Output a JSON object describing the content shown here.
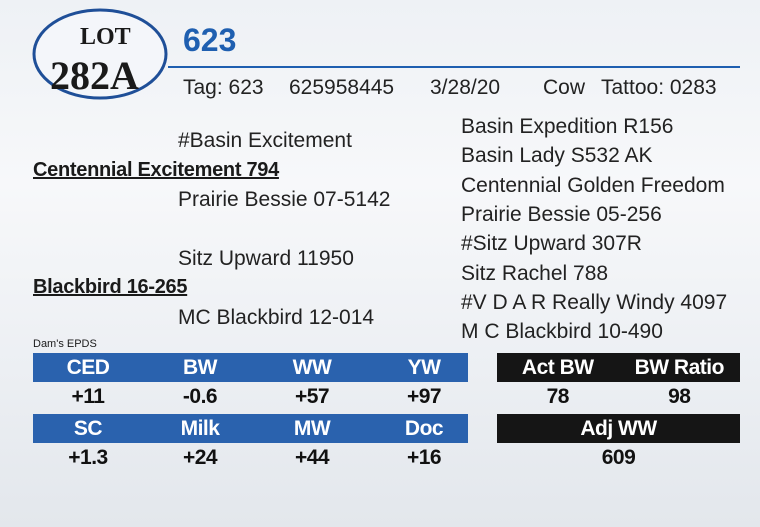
{
  "lot": {
    "label": "LOT",
    "number": "282A"
  },
  "header": {
    "name": "623",
    "tag": "Tag: 623",
    "registration": "625958445",
    "birth_date": "3/28/20",
    "sex": "Cow",
    "tattoo": "Tattoo: 0283"
  },
  "pedigree": {
    "sire": "Centennial Excitement 794",
    "sire_sire": "#Basin Excitement",
    "sire_dam": "Prairie Bessie 07-5142",
    "dam": "Blackbird 16-265",
    "dam_sire": "Sitz Upward 11950",
    "dam_dam": "MC Blackbird 12-014",
    "great_grandparents": [
      "Basin Expedition R156",
      "Basin Lady S532 AK",
      "Centennial Golden Freedom",
      "Prairie Bessie 05-256",
      "#Sitz Upward 307R",
      "Sitz Rachel 788",
      "#V D A R Really Windy 4097",
      "M C Blackbird 10-490"
    ]
  },
  "epds": {
    "title": "Dam's EPDS",
    "rows": [
      {
        "headers": [
          "CED",
          "BW",
          "WW",
          "YW"
        ],
        "values": [
          "+11",
          "-0.6",
          "+57",
          "+97"
        ]
      },
      {
        "headers": [
          "SC",
          "Milk",
          "MW",
          "Doc"
        ],
        "values": [
          "+1.3",
          "+24",
          "+44",
          "+16"
        ]
      }
    ]
  },
  "performance": {
    "rows": [
      {
        "headers": [
          "Act BW",
          "BW Ratio"
        ],
        "values": [
          "78",
          "98"
        ]
      },
      {
        "headers": [
          "Adj WW"
        ],
        "values": [
          "609"
        ]
      }
    ]
  }
}
